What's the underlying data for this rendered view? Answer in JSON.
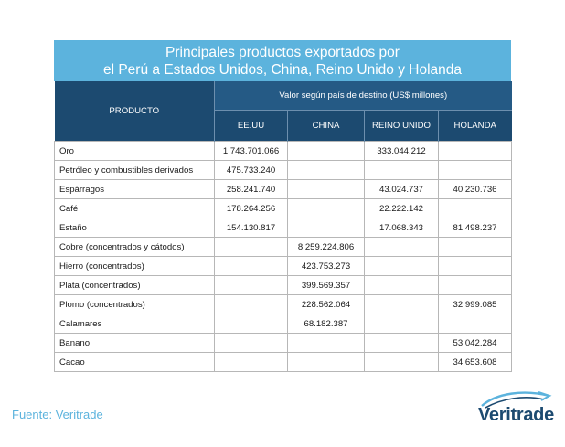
{
  "title": {
    "line1": "Principales productos exportados por",
    "line2": "el Perú a Estados Unidos, China, Reino Unido y Holanda"
  },
  "table": {
    "product_header": "PRODUCTO",
    "value_header": "Valor según país de destino (US$ millones)",
    "columns": [
      "EE.UU",
      "CHINA",
      "REINO UNIDO",
      "HOLANDA"
    ],
    "rows": [
      {
        "product": "Oro",
        "values": [
          "1.743.701.066",
          "",
          "333.044.212",
          ""
        ]
      },
      {
        "product": "Petróleo y combustibles derivados",
        "values": [
          "475.733.240",
          "",
          "",
          ""
        ]
      },
      {
        "product": "Espárragos",
        "values": [
          "258.241.740",
          "",
          "43.024.737",
          "40.230.736"
        ]
      },
      {
        "product": "Café",
        "values": [
          "178.264.256",
          "",
          "22.222.142",
          ""
        ]
      },
      {
        "product": "Estaño",
        "values": [
          "154.130.817",
          "",
          "17.068.343",
          "81.498.237"
        ]
      },
      {
        "product": "Cobre (concentrados y cátodos)",
        "values": [
          "",
          "8.259.224.806",
          "",
          ""
        ]
      },
      {
        "product": "Hierro (concentrados)",
        "values": [
          "",
          "423.753.273",
          "",
          ""
        ]
      },
      {
        "product": "Plata (concentrados)",
        "values": [
          "",
          "399.569.357",
          "",
          ""
        ]
      },
      {
        "product": "Plomo (concentrados)",
        "values": [
          "",
          "228.562.064",
          "",
          "32.999.085"
        ]
      },
      {
        "product": "Calamares",
        "values": [
          "",
          "68.182.387",
          "",
          ""
        ]
      },
      {
        "product": "Banano",
        "values": [
          "",
          "",
          "",
          "53.042.284"
        ]
      },
      {
        "product": "Cacao",
        "values": [
          "",
          "",
          "",
          "34.653.608"
        ]
      }
    ]
  },
  "source": "Fuente: Veritrade",
  "logo": {
    "text": "Veritrade",
    "icon": "swoosh-icon"
  },
  "colors": {
    "title_bg": "#5cb3dd",
    "header_bg": "#1c4a70",
    "subheader_bg": "#255a85",
    "source_text": "#5cb3dd",
    "logo_text": "#1c4a70"
  }
}
